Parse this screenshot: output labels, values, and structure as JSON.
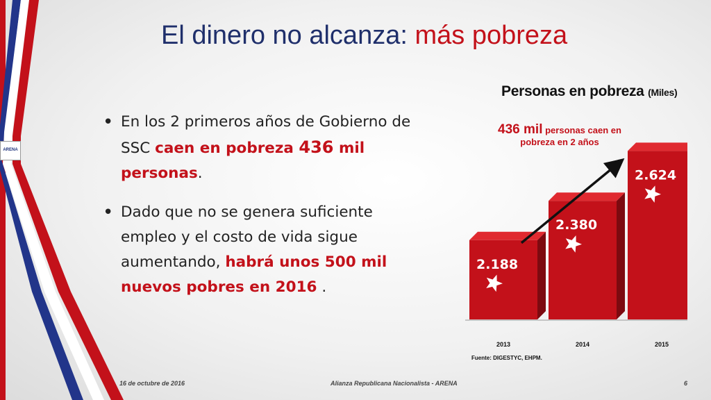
{
  "slide": {
    "title_main": "El dinero no alcanza:",
    "title_highlight": "más pobreza",
    "logo_text": "ARENA",
    "bullet1": {
      "t1": "En los 2 primeros años de Gobierno de SSC ",
      "t2": "caen en pobreza ",
      "t3": "436",
      "t4": " mil personas",
      "t5": "."
    },
    "bullet2": {
      "t1": "Dado que no se genera suficiente empleo y el costo de vida sigue aumentando, ",
      "t2": "habrá unos 500 mil nuevos pobres en 2016",
      "t3": " ."
    },
    "annotation": {
      "big": "436 mil",
      "rest": "personas caen en pobreza en 2 años"
    },
    "source": "Fuente: DIGESTYC, EHPM.",
    "footer": {
      "date": "16 de octubre de 2016",
      "center": "Alianza Republicana Nacionalista - ARENA",
      "page": "6"
    },
    "colors": {
      "red": "#c3111a",
      "blue": "#1f2f6b"
    }
  },
  "chart_data": {
    "type": "bar",
    "title": "Personas en pobreza",
    "title_unit": "(Miles)",
    "categories": [
      "2013",
      "2014",
      "2015"
    ],
    "values": [
      2188,
      2380,
      2624
    ],
    "labels": [
      "2.188",
      "2.380",
      "2.624"
    ],
    "ylim": [
      1800,
      2700
    ],
    "grid": false,
    "trend_arrow": true
  }
}
